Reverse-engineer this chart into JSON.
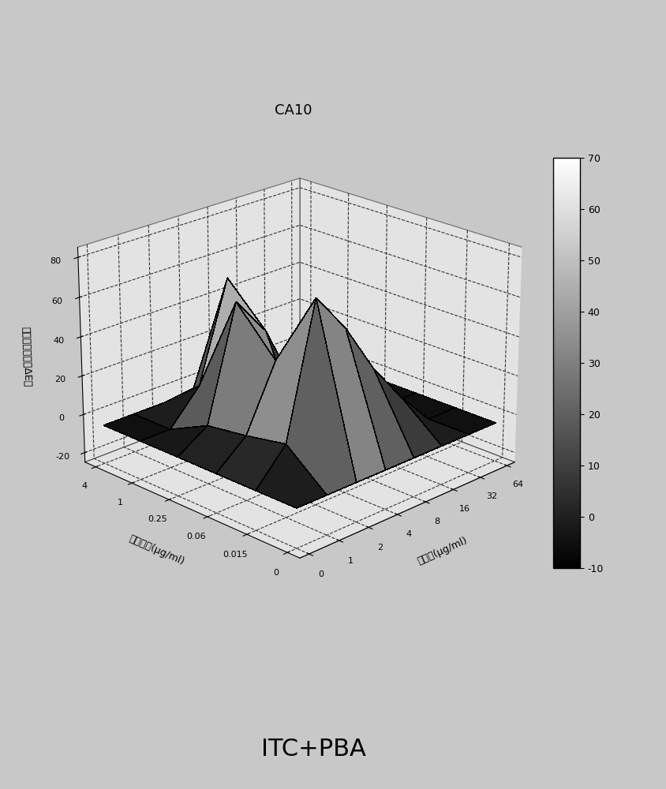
{
  "title": "CA10",
  "xlabel": "苯丁酸(μg/ml)",
  "ylabel": "伊曲康唠(μg/ml)",
  "zlabel": "各药物组合下的ΔE値",
  "bottom_label": "ITC+PBA",
  "x_ticks": [
    0,
    1,
    2,
    4,
    8,
    16,
    32,
    64
  ],
  "y_ticks": [
    0,
    0.015,
    0.06,
    0.25,
    1,
    4
  ],
  "zlim": [
    -25,
    85
  ],
  "colorbar_min": -10,
  "colorbar_max": 70,
  "colorbar_ticks": [
    -10,
    0,
    10,
    20,
    30,
    40,
    50,
    60,
    70
  ],
  "background_color": "#c8c8c8",
  "z_data": [
    [
      -5,
      -5,
      -5,
      -5,
      -5,
      -5
    ],
    [
      -5,
      12,
      8,
      5,
      -5,
      -5
    ],
    [
      -5,
      78,
      40,
      62,
      12,
      -5
    ],
    [
      -5,
      58,
      -8,
      42,
      62,
      -5
    ],
    [
      -5,
      32,
      -12,
      8,
      12,
      -5
    ],
    [
      -5,
      12,
      -10,
      -5,
      5,
      -5
    ],
    [
      -5,
      -5,
      -5,
      -5,
      -5,
      -5
    ],
    [
      -5,
      -5,
      -5,
      -5,
      -5,
      -5
    ]
  ],
  "view_elev": 22,
  "view_azim": 225
}
